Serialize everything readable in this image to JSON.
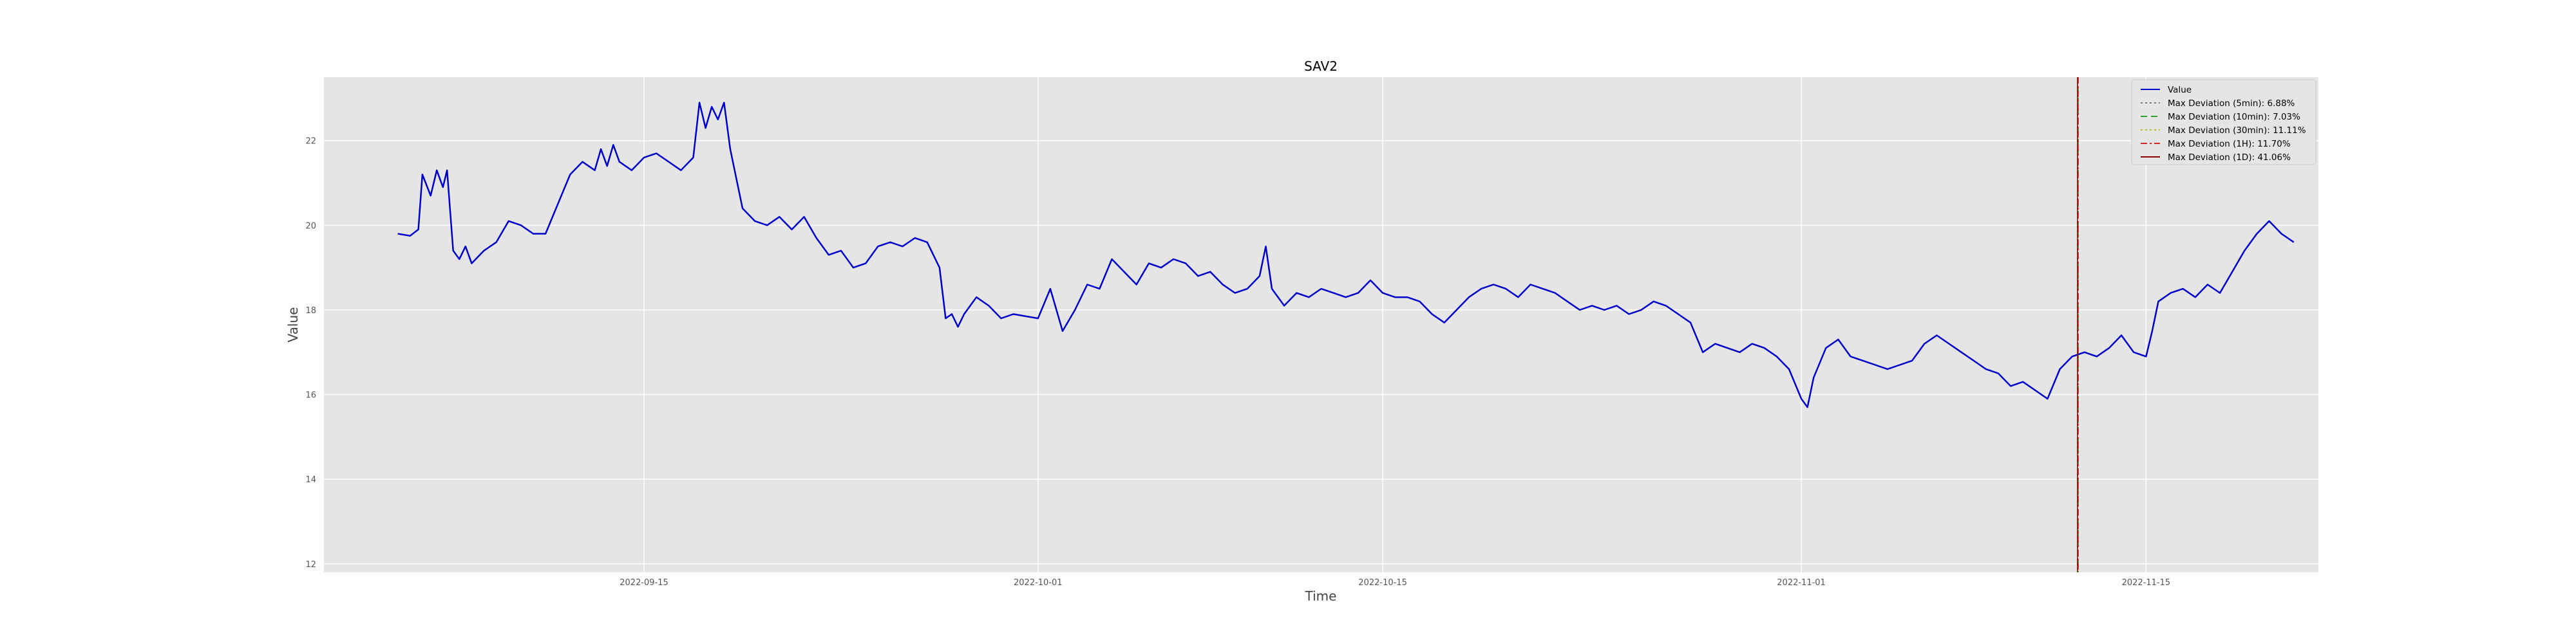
{
  "chart_data": {
    "type": "line",
    "title": "SAV2",
    "xlabel": "Time",
    "ylabel": "Value",
    "xlim": [
      "2022-09-02",
      "2022-11-22"
    ],
    "ylim": [
      11.8,
      23.5
    ],
    "x_ticks": [
      "2022-09-15",
      "2022-10-01",
      "2022-10-15",
      "2022-11-01",
      "2022-11-15"
    ],
    "y_ticks": [
      12,
      14,
      16,
      18,
      20,
      22
    ],
    "grid": true,
    "legend_position": "top-right",
    "series": [
      {
        "name": "Value",
        "color": "#0000cc",
        "points": [
          [
            "2022-09-05",
            19.8
          ],
          [
            "2022-09-05 12:00",
            19.75
          ],
          [
            "2022-09-05 20:00",
            19.9
          ],
          [
            "2022-09-06",
            21.2
          ],
          [
            "2022-09-06 08:00",
            20.7
          ],
          [
            "2022-09-06 14:00",
            21.3
          ],
          [
            "2022-09-06 20:00",
            20.9
          ],
          [
            "2022-09-07",
            21.3
          ],
          [
            "2022-09-07 06:00",
            19.4
          ],
          [
            "2022-09-07 12:00",
            19.2
          ],
          [
            "2022-09-07 18:00",
            19.5
          ],
          [
            "2022-09-08",
            19.1
          ],
          [
            "2022-09-08 12:00",
            19.4
          ],
          [
            "2022-09-09",
            19.6
          ],
          [
            "2022-09-09 12:00",
            20.1
          ],
          [
            "2022-09-10",
            20.0
          ],
          [
            "2022-09-10 12:00",
            19.8
          ],
          [
            "2022-09-11",
            19.8
          ],
          [
            "2022-09-11 12:00",
            20.5
          ],
          [
            "2022-09-12",
            21.2
          ],
          [
            "2022-09-12 12:00",
            21.5
          ],
          [
            "2022-09-13",
            21.3
          ],
          [
            "2022-09-13 06:00",
            21.8
          ],
          [
            "2022-09-13 12:00",
            21.4
          ],
          [
            "2022-09-13 18:00",
            21.9
          ],
          [
            "2022-09-14",
            21.5
          ],
          [
            "2022-09-14 12:00",
            21.3
          ],
          [
            "2022-09-15",
            21.6
          ],
          [
            "2022-09-15 12:00",
            21.7
          ],
          [
            "2022-09-16",
            21.5
          ],
          [
            "2022-09-16 12:00",
            21.3
          ],
          [
            "2022-09-17",
            21.6
          ],
          [
            "2022-09-17 06:00",
            22.9
          ],
          [
            "2022-09-17 12:00",
            22.3
          ],
          [
            "2022-09-17 18:00",
            22.8
          ],
          [
            "2022-09-18",
            22.5
          ],
          [
            "2022-09-18 06:00",
            22.9
          ],
          [
            "2022-09-18 12:00",
            21.8
          ],
          [
            "2022-09-19",
            20.4
          ],
          [
            "2022-09-19 12:00",
            20.1
          ],
          [
            "2022-09-20",
            20.0
          ],
          [
            "2022-09-20 12:00",
            20.2
          ],
          [
            "2022-09-21",
            19.9
          ],
          [
            "2022-09-21 12:00",
            20.2
          ],
          [
            "2022-09-22",
            19.7
          ],
          [
            "2022-09-22 12:00",
            19.3
          ],
          [
            "2022-09-23",
            19.4
          ],
          [
            "2022-09-23 12:00",
            19.0
          ],
          [
            "2022-09-24",
            19.1
          ],
          [
            "2022-09-24 12:00",
            19.5
          ],
          [
            "2022-09-25",
            19.6
          ],
          [
            "2022-09-25 12:00",
            19.5
          ],
          [
            "2022-09-26",
            19.7
          ],
          [
            "2022-09-26 12:00",
            19.6
          ],
          [
            "2022-09-27",
            19.0
          ],
          [
            "2022-09-27 06:00",
            17.8
          ],
          [
            "2022-09-27 12:00",
            17.9
          ],
          [
            "2022-09-27 18:00",
            17.6
          ],
          [
            "2022-09-28",
            17.9
          ],
          [
            "2022-09-28 12:00",
            18.3
          ],
          [
            "2022-09-29",
            18.1
          ],
          [
            "2022-09-29 12:00",
            17.8
          ],
          [
            "2022-09-30",
            17.9
          ],
          [
            "2022-10-01",
            17.8
          ],
          [
            "2022-10-01 12:00",
            18.5
          ],
          [
            "2022-10-02",
            17.5
          ],
          [
            "2022-10-02 12:00",
            18.0
          ],
          [
            "2022-10-03",
            18.6
          ],
          [
            "2022-10-03 12:00",
            18.5
          ],
          [
            "2022-10-04",
            19.2
          ],
          [
            "2022-10-04 12:00",
            18.9
          ],
          [
            "2022-10-05",
            18.6
          ],
          [
            "2022-10-05 12:00",
            19.1
          ],
          [
            "2022-10-06",
            19.0
          ],
          [
            "2022-10-06 12:00",
            19.2
          ],
          [
            "2022-10-07",
            19.1
          ],
          [
            "2022-10-07 12:00",
            18.8
          ],
          [
            "2022-10-08",
            18.9
          ],
          [
            "2022-10-08 12:00",
            18.6
          ],
          [
            "2022-10-09",
            18.4
          ],
          [
            "2022-10-09 12:00",
            18.5
          ],
          [
            "2022-10-10",
            18.8
          ],
          [
            "2022-10-10 06:00",
            19.5
          ],
          [
            "2022-10-10 12:00",
            18.5
          ],
          [
            "2022-10-11",
            18.1
          ],
          [
            "2022-10-11 12:00",
            18.4
          ],
          [
            "2022-10-12",
            18.3
          ],
          [
            "2022-10-12 12:00",
            18.5
          ],
          [
            "2022-10-13",
            18.4
          ],
          [
            "2022-10-13 12:00",
            18.3
          ],
          [
            "2022-10-14",
            18.4
          ],
          [
            "2022-10-14 12:00",
            18.7
          ],
          [
            "2022-10-15",
            18.4
          ],
          [
            "2022-10-15 12:00",
            18.3
          ],
          [
            "2022-10-16",
            18.3
          ],
          [
            "2022-10-16 12:00",
            18.2
          ],
          [
            "2022-10-17",
            17.9
          ],
          [
            "2022-10-17 12:00",
            17.7
          ],
          [
            "2022-10-18",
            18.0
          ],
          [
            "2022-10-18 12:00",
            18.3
          ],
          [
            "2022-10-19",
            18.5
          ],
          [
            "2022-10-19 12:00",
            18.6
          ],
          [
            "2022-10-20",
            18.5
          ],
          [
            "2022-10-20 12:00",
            18.3
          ],
          [
            "2022-10-21",
            18.6
          ],
          [
            "2022-10-21 12:00",
            18.5
          ],
          [
            "2022-10-22",
            18.4
          ],
          [
            "2022-10-22 12:00",
            18.2
          ],
          [
            "2022-10-23",
            18.0
          ],
          [
            "2022-10-23 12:00",
            18.1
          ],
          [
            "2022-10-24",
            18.0
          ],
          [
            "2022-10-24 12:00",
            18.1
          ],
          [
            "2022-10-25",
            17.9
          ],
          [
            "2022-10-25 12:00",
            18.0
          ],
          [
            "2022-10-26",
            18.2
          ],
          [
            "2022-10-26 12:00",
            18.1
          ],
          [
            "2022-10-27",
            17.9
          ],
          [
            "2022-10-27 12:00",
            17.7
          ],
          [
            "2022-10-28",
            17.0
          ],
          [
            "2022-10-28 12:00",
            17.2
          ],
          [
            "2022-10-29",
            17.1
          ],
          [
            "2022-10-29 12:00",
            17.0
          ],
          [
            "2022-10-30",
            17.2
          ],
          [
            "2022-10-30 12:00",
            17.1
          ],
          [
            "2022-10-31",
            16.9
          ],
          [
            "2022-10-31 12:00",
            16.6
          ],
          [
            "2022-11-01",
            15.9
          ],
          [
            "2022-11-01 06:00",
            15.7
          ],
          [
            "2022-11-01 12:00",
            16.4
          ],
          [
            "2022-11-02",
            17.1
          ],
          [
            "2022-11-02 12:00",
            17.3
          ],
          [
            "2022-11-03",
            16.9
          ],
          [
            "2022-11-03 12:00",
            16.8
          ],
          [
            "2022-11-04",
            16.7
          ],
          [
            "2022-11-04 12:00",
            16.6
          ],
          [
            "2022-11-05",
            16.7
          ],
          [
            "2022-11-05 12:00",
            16.8
          ],
          [
            "2022-11-06",
            17.2
          ],
          [
            "2022-11-06 12:00",
            17.4
          ],
          [
            "2022-11-07",
            17.2
          ],
          [
            "2022-11-07 12:00",
            17.0
          ],
          [
            "2022-11-08",
            16.8
          ],
          [
            "2022-11-08 12:00",
            16.6
          ],
          [
            "2022-11-09",
            16.5
          ],
          [
            "2022-11-09 12:00",
            16.2
          ],
          [
            "2022-11-10",
            16.3
          ],
          [
            "2022-11-10 12:00",
            16.1
          ],
          [
            "2022-11-11",
            15.9
          ],
          [
            "2022-11-11 12:00",
            16.6
          ],
          [
            "2022-11-12",
            16.9
          ],
          [
            "2022-11-12 12:00",
            17.0
          ],
          [
            "2022-11-13",
            16.9
          ],
          [
            "2022-11-13 12:00",
            17.1
          ],
          [
            "2022-11-14",
            17.4
          ],
          [
            "2022-11-14 12:00",
            17.0
          ],
          [
            "2022-11-15",
            16.9
          ],
          [
            "2022-11-15 06:00",
            17.5
          ],
          [
            "2022-11-15 12:00",
            18.2
          ],
          [
            "2022-11-16",
            18.4
          ],
          [
            "2022-11-16 12:00",
            18.5
          ],
          [
            "2022-11-17",
            18.3
          ],
          [
            "2022-11-17 12:00",
            18.6
          ],
          [
            "2022-11-18",
            18.4
          ],
          [
            "2022-11-18 12:00",
            18.9
          ],
          [
            "2022-11-19",
            19.4
          ],
          [
            "2022-11-19 12:00",
            19.8
          ],
          [
            "2022-11-20",
            20.1
          ],
          [
            "2022-11-20 12:00",
            19.8
          ],
          [
            "2022-11-21",
            19.6
          ]
        ]
      }
    ],
    "deviation_lines": [
      {
        "name": "Max Deviation (5min): 6.88%",
        "color": "#7f7f7f",
        "style": "dotted"
      },
      {
        "name": "Max Deviation (10min): 7.03%",
        "color": "#2ca02c",
        "style": "dashed"
      },
      {
        "name": "Max Deviation (30min): 11.11%",
        "color": "#bcbd22",
        "style": "dotted"
      },
      {
        "name": "Max Deviation (1H): 11.70%",
        "color": "#d62728",
        "style": "dashdot"
      },
      {
        "name": "Max Deviation (1D): 41.06%",
        "color": "#8b0000",
        "style": "solid"
      }
    ]
  }
}
